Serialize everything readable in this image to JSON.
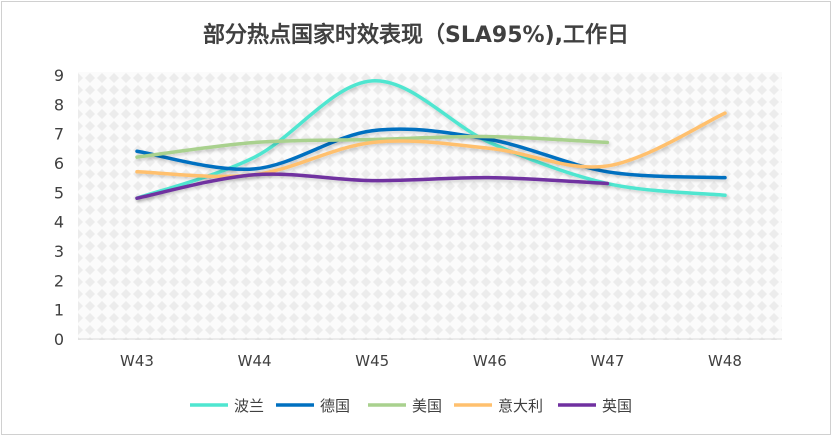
{
  "chart_data": {
    "type": "line",
    "smooth": true,
    "title": "部分热点国家时效表现（SLA95%),工作日",
    "categories": [
      "W43",
      "W44",
      "W45",
      "W46",
      "W47",
      "W48"
    ],
    "ylim": [
      0,
      9
    ],
    "yticks": [
      "0",
      "1",
      "2",
      "3",
      "4",
      "5",
      "6",
      "7",
      "8",
      "9"
    ],
    "grid": false,
    "legend": "bottom",
    "series": [
      {
        "name": "波兰",
        "color": "#4FE6D0",
        "values": [
          4.8,
          6.2,
          8.8,
          6.7,
          5.3,
          4.9
        ]
      },
      {
        "name": "德国",
        "color": "#0070C0",
        "values": [
          6.4,
          5.8,
          7.1,
          6.8,
          5.7,
          5.5
        ]
      },
      {
        "name": "美国",
        "color": "#A9D18E",
        "values": [
          6.2,
          6.7,
          6.8,
          6.9,
          6.7,
          null
        ]
      },
      {
        "name": "意大利",
        "color": "#FFC06E",
        "values": [
          5.7,
          5.6,
          6.7,
          6.5,
          5.9,
          7.7
        ]
      },
      {
        "name": "英国",
        "color": "#7030A0",
        "values": [
          4.8,
          5.6,
          5.4,
          5.5,
          5.3,
          null
        ]
      }
    ]
  }
}
